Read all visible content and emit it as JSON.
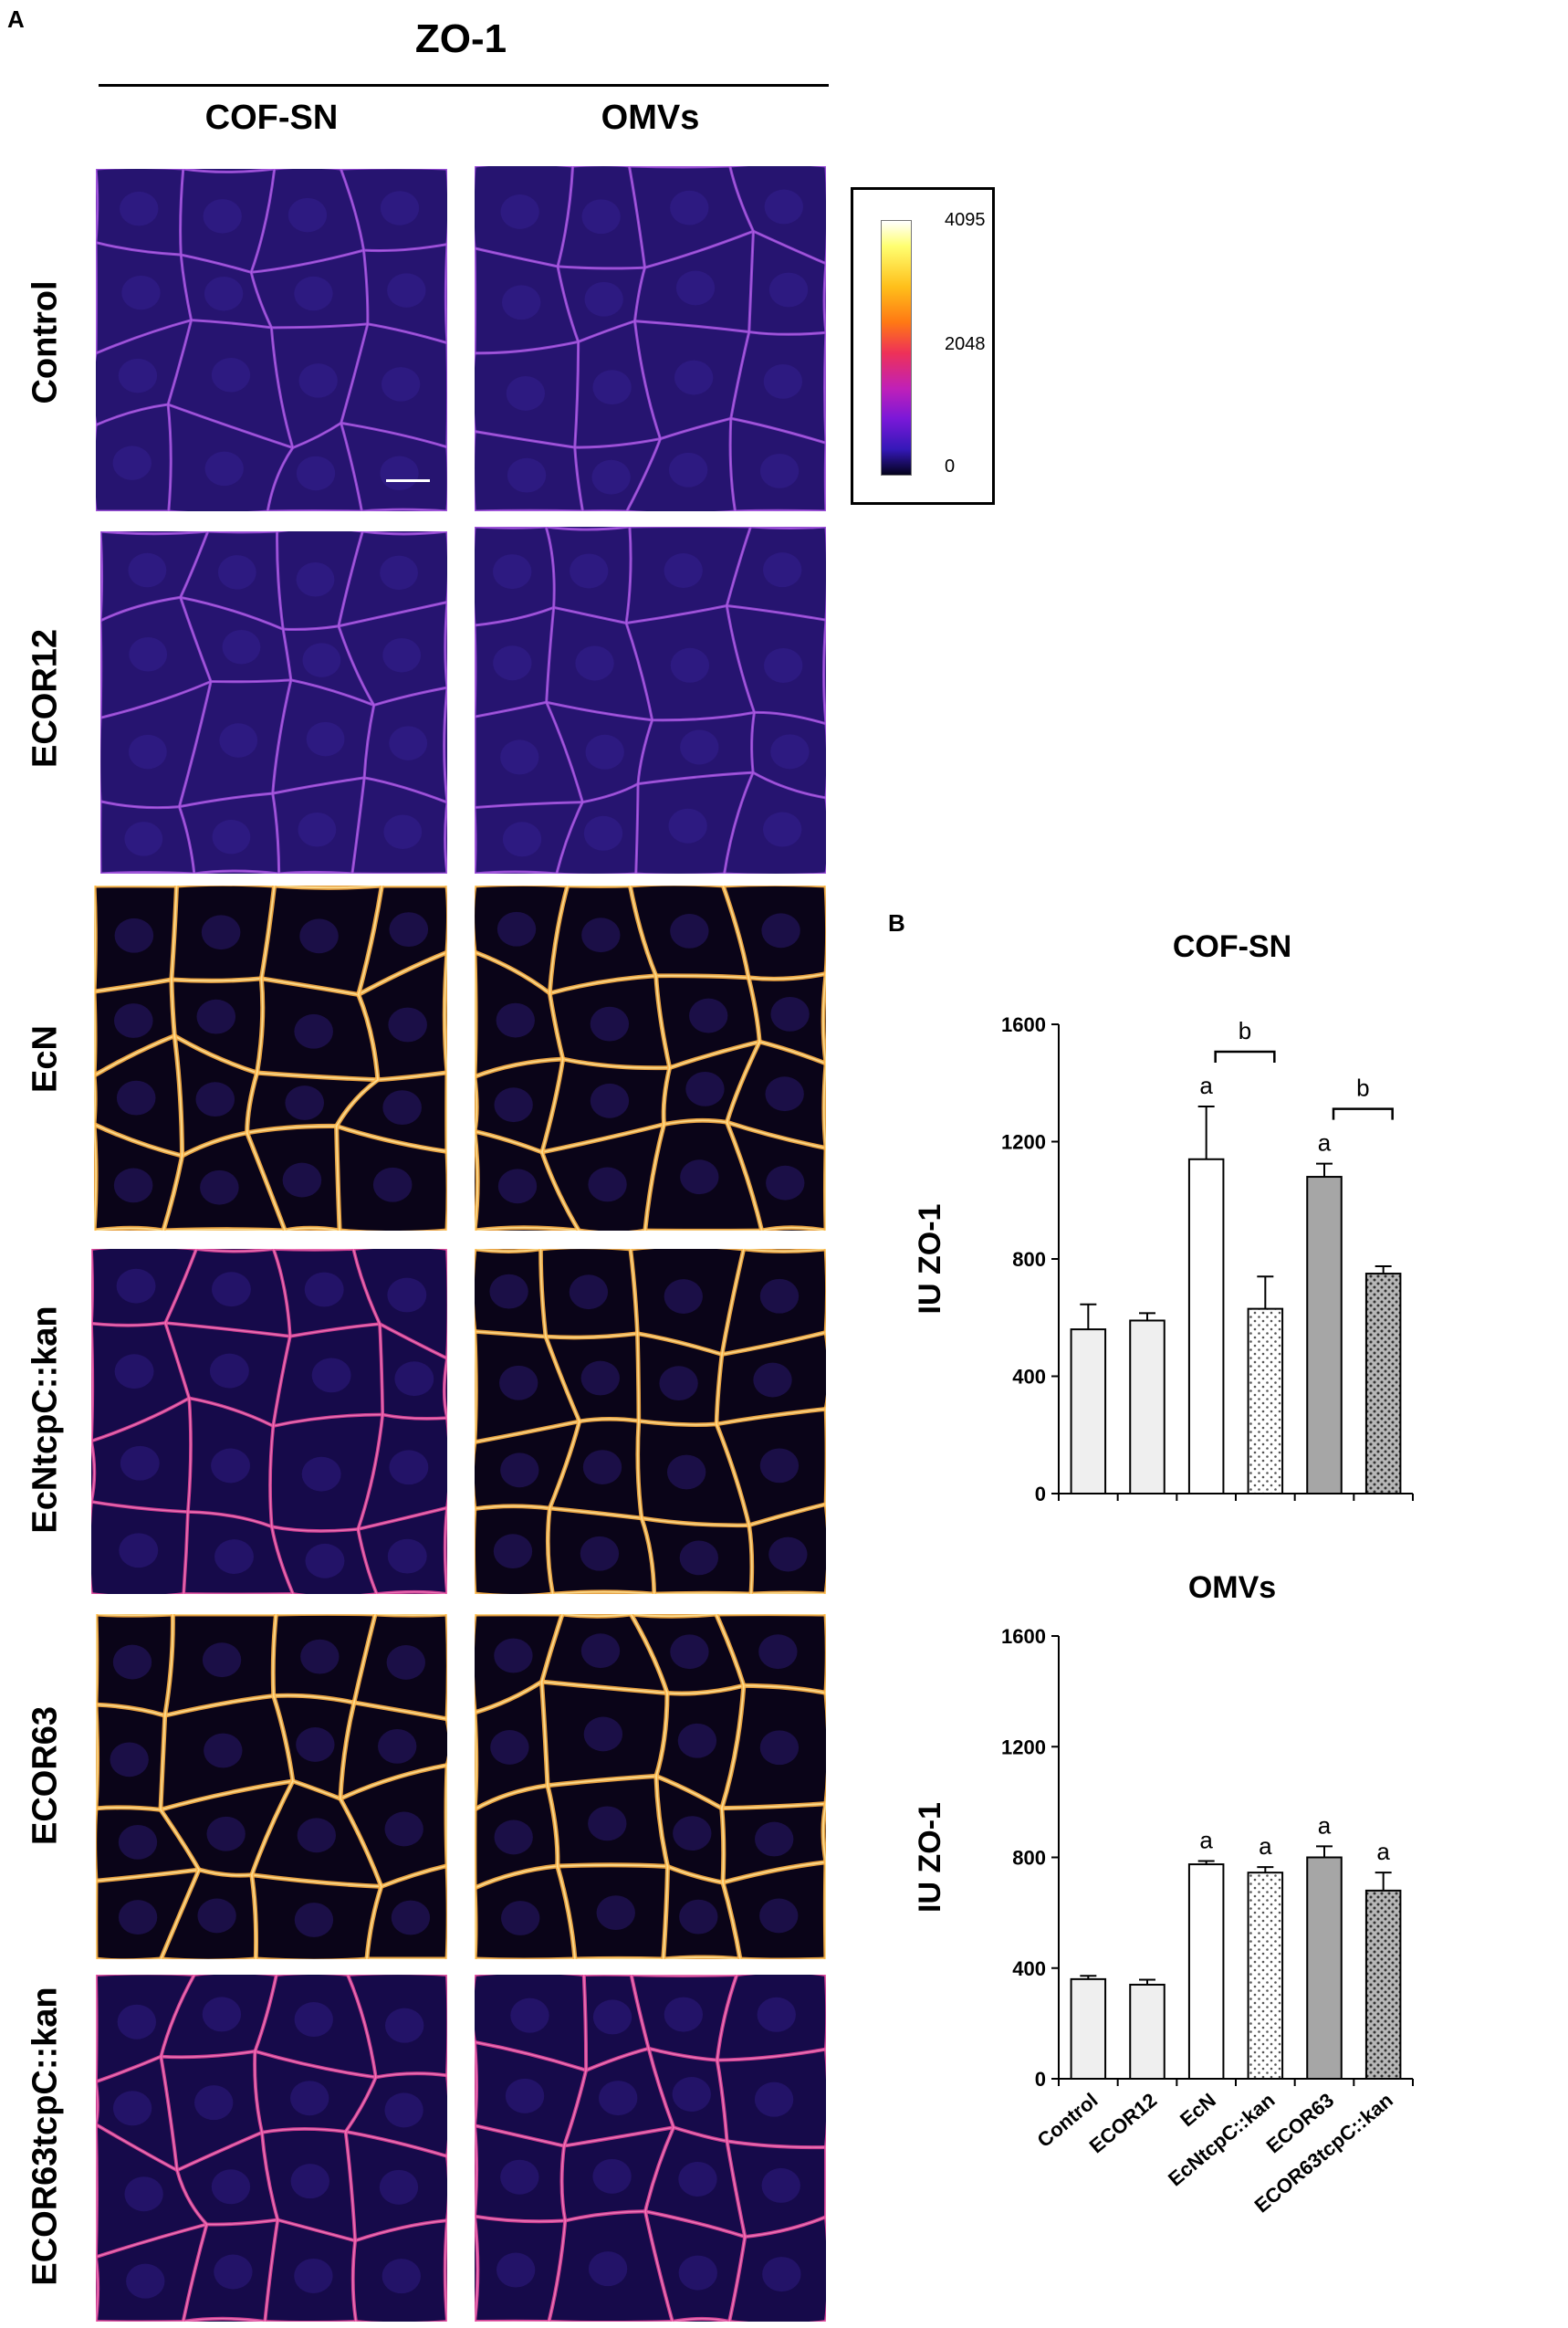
{
  "panels": {
    "a": "A",
    "b": "B"
  },
  "figure": {
    "stain": "ZO-1",
    "columns": [
      "COF-SN",
      "OMVs"
    ],
    "rows": [
      "Control",
      "ECOR12",
      "EcN",
      "EcNtcpC::kan",
      "ECOR63",
      "ECOR63tcpC::kan"
    ],
    "colorbar": {
      "ticks": [
        "4095",
        "2048",
        "0"
      ]
    },
    "micrographs": [
      {
        "row": "Control",
        "column": "COF-SN",
        "brightness": 0.18
      },
      {
        "row": "Control",
        "column": "OMVs",
        "brightness": 0.2
      },
      {
        "row": "ECOR12",
        "column": "COF-SN",
        "brightness": 0.2
      },
      {
        "row": "ECOR12",
        "column": "OMVs",
        "brightness": 0.18
      },
      {
        "row": "EcN",
        "column": "COF-SN",
        "brightness": 0.85
      },
      {
        "row": "EcN",
        "column": "OMVs",
        "brightness": 0.78
      },
      {
        "row": "EcNtcpC::kan",
        "column": "COF-SN",
        "brightness": 0.4
      },
      {
        "row": "EcNtcpC::kan",
        "column": "OMVs",
        "brightness": 0.72
      },
      {
        "row": "ECOR63",
        "column": "COF-SN",
        "brightness": 0.8
      },
      {
        "row": "ECOR63",
        "column": "OMVs",
        "brightness": 0.85
      },
      {
        "row": "ECOR63tcpC::kan",
        "column": "COF-SN",
        "brightness": 0.45
      },
      {
        "row": "ECOR63tcpC::kan",
        "column": "OMVs",
        "brightness": 0.5
      }
    ]
  },
  "colors": {
    "light_gray": "#efefef",
    "white": "#ffffff",
    "gray": "#a6a6a6",
    "dark_gray": "#7a7a7a",
    "stroke": "#000000"
  },
  "chart_data": [
    {
      "type": "bar",
      "title": "COF-SN",
      "ylabel": "IU  ZO-1",
      "xlabel": "",
      "categories": [
        "Control",
        "ECOR12",
        "EcN",
        "EcNtcpC::kan",
        "ECOR63",
        "ECOR63tcpC::kan"
      ],
      "values": [
        560,
        590,
        1140,
        630,
        1080,
        750
      ],
      "errors": [
        85,
        25,
        180,
        110,
        45,
        25
      ],
      "fills": [
        "light",
        "light",
        "white",
        "dots",
        "gray",
        "darkdots"
      ],
      "ylim": [
        0,
        1600
      ],
      "yticks": [
        0,
        400,
        800,
        1200,
        1600
      ],
      "annotations": [
        {
          "category": "EcN",
          "text": "a"
        },
        {
          "category": "ECOR63",
          "text": "a"
        }
      ],
      "brackets": [
        {
          "from": "EcN",
          "to": "EcNtcpC::kan",
          "text": "b"
        },
        {
          "from": "ECOR63",
          "to": "ECOR63tcpC::kan",
          "text": "b"
        }
      ],
      "show_category_labels": false
    },
    {
      "type": "bar",
      "title": "OMVs",
      "ylabel": "IU  ZO-1",
      "xlabel": "",
      "categories": [
        "Control",
        "ECOR12",
        "EcN",
        "EcNtcpC::kan",
        "ECOR63",
        "ECOR63tcpC::kan"
      ],
      "values": [
        360,
        340,
        775,
        745,
        800,
        680
      ],
      "errors": [
        12,
        18,
        12,
        20,
        40,
        65
      ],
      "fills": [
        "light",
        "light",
        "white",
        "dots",
        "gray",
        "darkdots"
      ],
      "ylim": [
        0,
        1600
      ],
      "yticks": [
        0,
        400,
        800,
        1200,
        1600
      ],
      "annotations": [
        {
          "category": "EcN",
          "text": "a"
        },
        {
          "category": "EcNtcpC::kan",
          "text": "a"
        },
        {
          "category": "ECOR63",
          "text": "a"
        },
        {
          "category": "ECOR63tcpC::kan",
          "text": "a"
        }
      ],
      "brackets": [],
      "show_category_labels": true
    }
  ]
}
